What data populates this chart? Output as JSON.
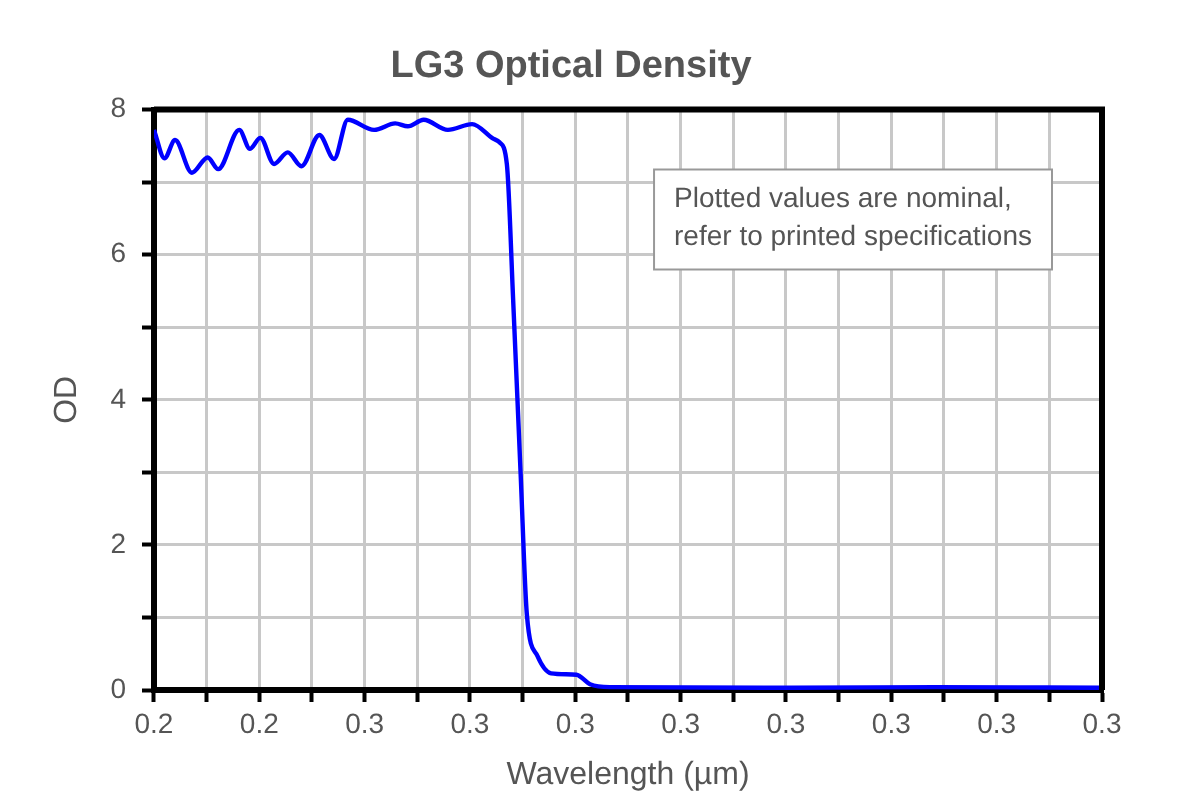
{
  "chart_data": {
    "type": "line",
    "title": "LG3 Optical Density",
    "xlabel": "Wavelength (µm)",
    "ylabel": "OD",
    "x": [
      0.23,
      0.231,
      0.232,
      0.2336,
      0.2351,
      0.2361,
      0.2381,
      0.2391,
      0.2401,
      0.2414,
      0.2427,
      0.244,
      0.2457,
      0.2471,
      0.2484,
      0.2509,
      0.2529,
      0.2541,
      0.2556,
      0.2579,
      0.2602,
      0.2622,
      0.2628,
      0.2635,
      0.2641,
      0.2648,
      0.2654,
      0.2664,
      0.2677,
      0.2701,
      0.2714,
      0.2733,
      0.2905,
      0.3043,
      0.32
    ],
    "series": [
      {
        "color": "#0000ff",
        "values": [
          7.72,
          7.33,
          7.58,
          7.13,
          7.34,
          7.18,
          7.72,
          7.46,
          7.61,
          7.25,
          7.41,
          7.22,
          7.65,
          7.32,
          7.86,
          7.72,
          7.81,
          7.77,
          7.86,
          7.72,
          7.8,
          7.6,
          7.55,
          7.25,
          5.37,
          3.01,
          1.04,
          0.47,
          0.23,
          0.21,
          0.08,
          0.04,
          0.03,
          0.04,
          0.03
        ]
      }
    ],
    "xlim": [
      0.23,
      0.32
    ],
    "xticks": [
      {
        "value": 0.23,
        "label": "0.2"
      },
      {
        "value": 0.235,
        "label": null
      },
      {
        "value": 0.24,
        "label": "0.2"
      },
      {
        "value": 0.245,
        "label": null
      },
      {
        "value": 0.25,
        "label": "0.3"
      },
      {
        "value": 0.255,
        "label": null
      },
      {
        "value": 0.26,
        "label": "0.3"
      },
      {
        "value": 0.265,
        "label": null
      },
      {
        "value": 0.27,
        "label": "0.3"
      },
      {
        "value": 0.275,
        "label": null
      },
      {
        "value": 0.28,
        "label": "0.3"
      },
      {
        "value": 0.285,
        "label": null
      },
      {
        "value": 0.29,
        "label": "0.3"
      },
      {
        "value": 0.295,
        "label": null
      },
      {
        "value": 0.3,
        "label": "0.3"
      },
      {
        "value": 0.305,
        "label": null
      },
      {
        "value": 0.31,
        "label": "0.3"
      },
      {
        "value": 0.315,
        "label": null
      },
      {
        "value": 0.32,
        "label": "0.3"
      }
    ],
    "ylim": [
      0,
      8
    ],
    "yticks": [
      0,
      {
        "value": 1,
        "label": null
      },
      2,
      {
        "value": 3,
        "label": null
      },
      4,
      {
        "value": 5,
        "label": null
      },
      6,
      {
        "value": 7,
        "label": null
      },
      8
    ],
    "grid": true,
    "legend": false,
    "marker": "none",
    "line_style": "solid",
    "annotations": [
      "Plotted values are nominal,\nrefer to printed specifications"
    ]
  }
}
